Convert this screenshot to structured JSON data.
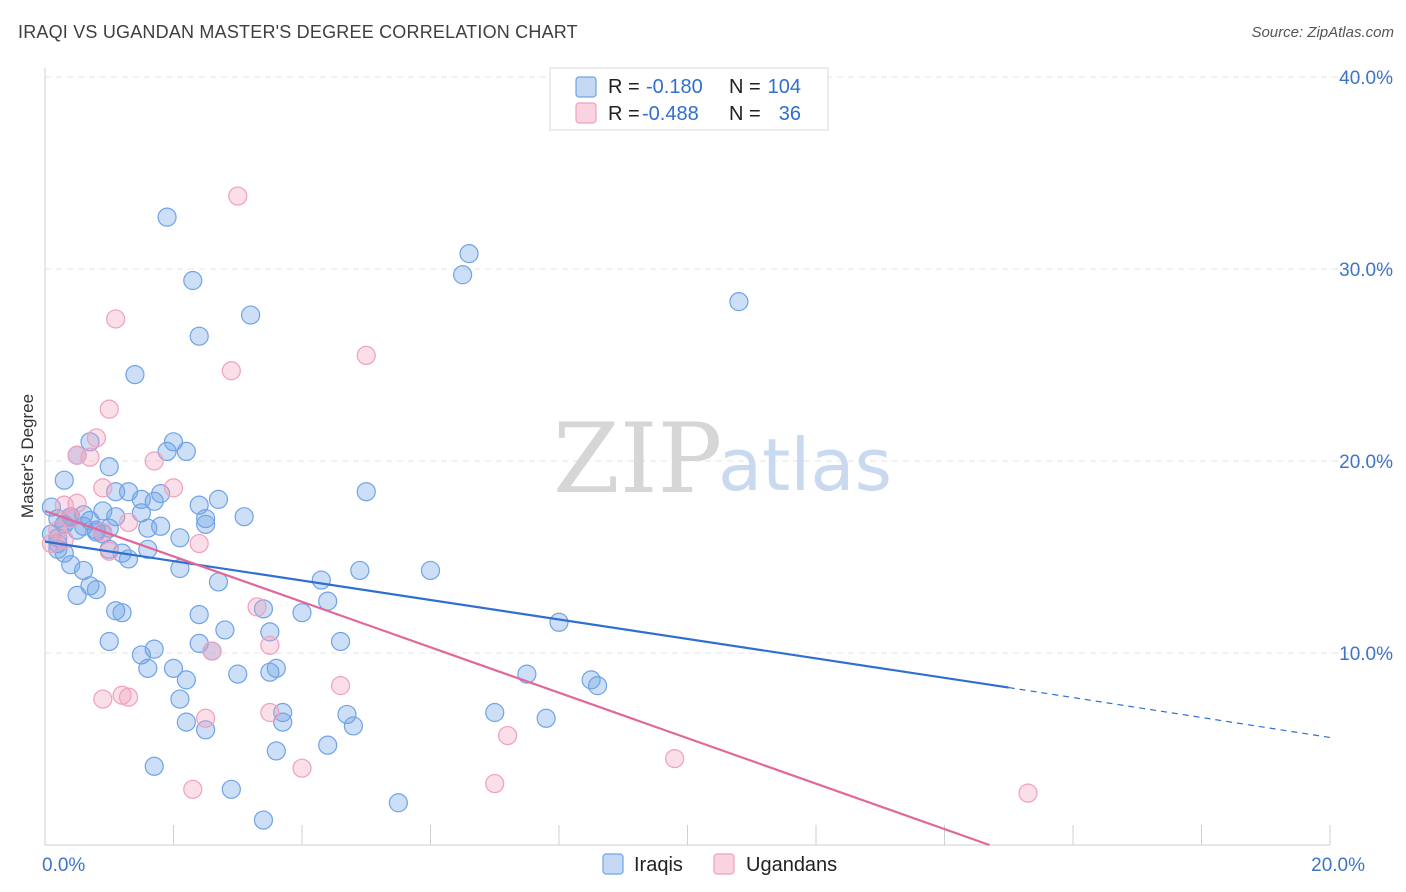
{
  "title": "IRAQI VS UGANDAN MASTER'S DEGREE CORRELATION CHART",
  "source": "Source: ZipAtlas.com",
  "watermark": {
    "part1": "ZIP",
    "part2": "atlas"
  },
  "colors": {
    "iraqi": "#6fa3e6",
    "iraqi_line": "#2f6fd0",
    "ugandan": "#f0a0bd",
    "ugandan_line": "#e0689a",
    "tick": "#3d74c8",
    "grid": "#e3e3e3"
  },
  "legend_top": {
    "rows": [
      {
        "r_label": "R = ",
        "r_value": "-0.180",
        "n_label": "N = ",
        "n_value": "104"
      },
      {
        "r_label": "R = ",
        "r_value": "-0.488",
        "n_label": "N = ",
        "n_value": "36"
      }
    ]
  },
  "chart_data": {
    "type": "scatter",
    "ylabel": "Master's Degree",
    "xlim": [
      0,
      20
    ],
    "ylim": [
      0,
      40
    ],
    "x_tick_labels": [
      {
        "x": 0,
        "label": "0.0%"
      },
      {
        "x": 20,
        "label": "20.0%"
      }
    ],
    "y_tick_labels": [
      {
        "y": 10,
        "label": "10.0%"
      },
      {
        "y": 20,
        "label": "20.0%"
      },
      {
        "y": 30,
        "label": "30.0%"
      },
      {
        "y": 40,
        "label": "40.0%"
      }
    ],
    "grid": true,
    "legend": {
      "placement": "bottom",
      "entries": [
        "Iraqis",
        "Ugandans"
      ]
    },
    "series": [
      {
        "name": "Iraqis",
        "trend": {
          "x0": 0,
          "y0": 15.8,
          "x1": 15,
          "y1": 8.2,
          "dash_to_x": 20,
          "dash_to_y": 5.6
        },
        "points": [
          [
            0.1,
            17.6
          ],
          [
            0.2,
            17.0
          ],
          [
            0.3,
            16.7
          ],
          [
            0.1,
            16.2
          ],
          [
            0.4,
            17.1
          ],
          [
            0.5,
            16.4
          ],
          [
            0.6,
            16.6
          ],
          [
            0.7,
            16.9
          ],
          [
            0.8,
            16.3
          ],
          [
            0.3,
            15.2
          ],
          [
            0.2,
            15.7
          ],
          [
            0.4,
            14.6
          ],
          [
            0.3,
            19.0
          ],
          [
            0.5,
            20.3
          ],
          [
            0.7,
            21.0
          ],
          [
            1.0,
            19.7
          ],
          [
            1.1,
            18.4
          ],
          [
            1.3,
            18.4
          ],
          [
            1.5,
            17.3
          ],
          [
            1.6,
            16.5
          ],
          [
            1.7,
            17.9
          ],
          [
            1.8,
            18.3
          ],
          [
            1.9,
            20.5
          ],
          [
            2.0,
            21.0
          ],
          [
            2.2,
            20.5
          ],
          [
            2.5,
            17.0
          ],
          [
            2.7,
            18.0
          ],
          [
            2.5,
            16.7
          ],
          [
            3.1,
            17.1
          ],
          [
            1.6,
            15.4
          ],
          [
            1.0,
            15.4
          ],
          [
            1.2,
            15.2
          ],
          [
            1.3,
            14.9
          ],
          [
            0.9,
            16.2
          ],
          [
            0.6,
            14.3
          ],
          [
            0.5,
            13.0
          ],
          [
            0.7,
            13.5
          ],
          [
            0.8,
            13.3
          ],
          [
            1.1,
            12.2
          ],
          [
            1.2,
            12.1
          ],
          [
            1.0,
            10.6
          ],
          [
            1.5,
            9.9
          ],
          [
            1.7,
            10.2
          ],
          [
            1.6,
            9.2
          ],
          [
            2.0,
            9.2
          ],
          [
            2.2,
            8.6
          ],
          [
            2.4,
            10.5
          ],
          [
            2.6,
            10.1
          ],
          [
            2.8,
            11.2
          ],
          [
            2.1,
            7.6
          ],
          [
            2.2,
            6.4
          ],
          [
            2.5,
            6.0
          ],
          [
            3.0,
            8.9
          ],
          [
            3.5,
            9.0
          ],
          [
            3.6,
            9.2
          ],
          [
            3.5,
            11.1
          ],
          [
            4.0,
            12.1
          ],
          [
            4.4,
            12.7
          ],
          [
            4.3,
            13.8
          ],
          [
            4.6,
            10.6
          ],
          [
            4.7,
            6.8
          ],
          [
            4.8,
            6.2
          ],
          [
            4.4,
            5.2
          ],
          [
            3.7,
            6.9
          ],
          [
            3.7,
            6.4
          ],
          [
            3.6,
            4.9
          ],
          [
            2.9,
            2.9
          ],
          [
            3.4,
            1.3
          ],
          [
            1.7,
            4.1
          ],
          [
            5.5,
            2.2
          ],
          [
            1.9,
            32.7
          ],
          [
            2.3,
            29.4
          ],
          [
            2.4,
            26.5
          ],
          [
            3.2,
            27.6
          ],
          [
            1.4,
            24.5
          ],
          [
            6.5,
            29.7
          ],
          [
            6.6,
            30.8
          ],
          [
            10.8,
            28.3
          ],
          [
            5.0,
            18.4
          ],
          [
            4.9,
            14.3
          ],
          [
            6.0,
            14.3
          ],
          [
            8.0,
            11.6
          ],
          [
            7.5,
            8.9
          ],
          [
            8.5,
            8.6
          ],
          [
            8.6,
            8.3
          ],
          [
            7.0,
            6.9
          ],
          [
            7.8,
            6.6
          ],
          [
            2.7,
            13.7
          ],
          [
            2.1,
            14.4
          ],
          [
            2.1,
            16.0
          ],
          [
            1.0,
            16.5
          ],
          [
            0.9,
            17.4
          ],
          [
            1.1,
            17.1
          ],
          [
            0.4,
            17.0
          ],
          [
            0.2,
            16.0
          ],
          [
            0.3,
            16.7
          ],
          [
            0.6,
            17.2
          ],
          [
            0.8,
            16.4
          ],
          [
            1.5,
            18.0
          ],
          [
            2.4,
            17.7
          ],
          [
            0.2,
            15.4
          ],
          [
            1.8,
            16.6
          ],
          [
            2.4,
            12.0
          ],
          [
            3.4,
            12.3
          ]
        ]
      },
      {
        "name": "Ugandans",
        "trend": {
          "x0": 0,
          "y0": 17.4,
          "x1": 14.7,
          "y1": 0
        },
        "points": [
          [
            0.3,
            17.7
          ],
          [
            0.4,
            17.0
          ],
          [
            0.2,
            16.4
          ],
          [
            0.3,
            15.9
          ],
          [
            0.1,
            15.7
          ],
          [
            0.5,
            17.8
          ],
          [
            0.5,
            20.3
          ],
          [
            0.7,
            20.2
          ],
          [
            0.8,
            21.2
          ],
          [
            1.0,
            22.7
          ],
          [
            1.1,
            27.4
          ],
          [
            1.7,
            20.0
          ],
          [
            2.0,
            18.6
          ],
          [
            1.3,
            16.8
          ],
          [
            2.4,
            15.7
          ],
          [
            0.9,
            16.3
          ],
          [
            1.0,
            15.3
          ],
          [
            0.9,
            18.6
          ],
          [
            2.9,
            24.7
          ],
          [
            3.0,
            33.8
          ],
          [
            5.0,
            25.5
          ],
          [
            3.3,
            12.4
          ],
          [
            3.5,
            10.4
          ],
          [
            3.5,
            6.9
          ],
          [
            4.6,
            8.3
          ],
          [
            4.0,
            4.0
          ],
          [
            2.6,
            10.1
          ],
          [
            2.5,
            6.6
          ],
          [
            2.3,
            2.9
          ],
          [
            1.3,
            7.7
          ],
          [
            1.2,
            7.8
          ],
          [
            0.9,
            7.6
          ],
          [
            7.2,
            5.7
          ],
          [
            7.0,
            3.2
          ],
          [
            9.8,
            4.5
          ],
          [
            15.3,
            2.7
          ]
        ]
      }
    ]
  }
}
